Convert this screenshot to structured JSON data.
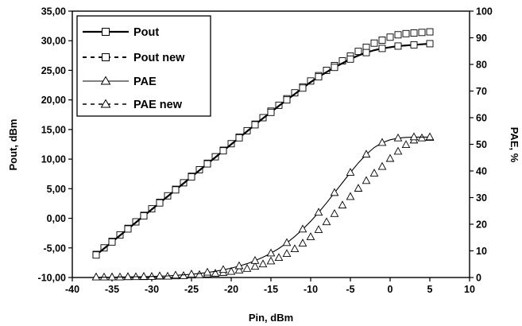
{
  "chart_data": {
    "type": "line",
    "xlabel": "Pin, dBm",
    "ylabel_left": "Pout, dBm",
    "ylabel_right": "PAE, %",
    "x_ticks": [
      "-40",
      "-35",
      "-30",
      "-25",
      "-20",
      "-15",
      "-10",
      "-5",
      "0",
      "5",
      "10"
    ],
    "y_left_ticks": [
      "-10,00",
      "-5,00",
      "0,00",
      "5,00",
      "10,00",
      "15,00",
      "20,00",
      "25,00",
      "30,00",
      "35,00"
    ],
    "y_right_ticks": [
      "0",
      "10",
      "20",
      "30",
      "40",
      "50",
      "60",
      "70",
      "80",
      "90",
      "100"
    ],
    "xlim": [
      -40,
      10
    ],
    "ylim_left": [
      -10,
      35
    ],
    "ylim_right": [
      0,
      100
    ],
    "grid": false,
    "legend_position": "top-left",
    "series": [
      {
        "name": "Pout",
        "axis": "left",
        "line": "solid",
        "marker": "square",
        "marker_step": 2,
        "x": [
          -37,
          -36,
          -35,
          -34,
          -33,
          -32,
          -31,
          -30,
          -29,
          -28,
          -27,
          -26,
          -25,
          -24,
          -23,
          -22,
          -21,
          -20,
          -19,
          -18,
          -17,
          -16,
          -15,
          -14,
          -13,
          -12,
          -11,
          -10,
          -9,
          -8,
          -7,
          -6,
          -5,
          -4,
          -3,
          -2,
          -1,
          0,
          1,
          2,
          3,
          4,
          5
        ],
        "y": [
          -6.2,
          -5.1,
          -4.0,
          -2.9,
          -1.8,
          -0.7,
          0.4,
          1.5,
          2.6,
          3.7,
          4.8,
          5.9,
          7.0,
          8.1,
          9.2,
          10.3,
          11.4,
          12.5,
          13.6,
          14.7,
          15.8,
          16.9,
          17.9,
          19.0,
          20.0,
          21.0,
          22.0,
          23.0,
          23.9,
          24.7,
          25.5,
          26.2,
          26.9,
          27.5,
          28.0,
          28.4,
          28.7,
          28.9,
          29.1,
          29.2,
          29.3,
          29.4,
          29.5
        ]
      },
      {
        "name": "Pout new",
        "axis": "left",
        "line": "none",
        "marker": "square",
        "x": [
          -37,
          -36,
          -35,
          -34,
          -33,
          -32,
          -31,
          -30,
          -29,
          -28,
          -27,
          -26,
          -25,
          -24,
          -23,
          -22,
          -21,
          -20,
          -19,
          -18,
          -17,
          -16,
          -15,
          -14,
          -13,
          -12,
          -11,
          -10,
          -9,
          -8,
          -7,
          -6,
          -5,
          -4,
          -3,
          -2,
          -1,
          0,
          1,
          2,
          3,
          4,
          5
        ],
        "y": [
          -6.1,
          -5.0,
          -3.9,
          -2.8,
          -1.7,
          -0.6,
          0.5,
          1.6,
          2.7,
          3.8,
          4.9,
          6.0,
          7.1,
          8.2,
          9.3,
          10.4,
          11.5,
          12.6,
          13.7,
          14.8,
          15.9,
          17.0,
          18.1,
          19.1,
          20.2,
          21.2,
          22.2,
          23.2,
          24.1,
          25.0,
          25.8,
          26.6,
          27.4,
          28.2,
          28.9,
          29.6,
          30.1,
          30.6,
          31.0,
          31.2,
          31.3,
          31.4,
          31.5
        ]
      },
      {
        "name": "PAE",
        "axis": "right",
        "line": "solid",
        "marker": "triangle",
        "marker_step": 2,
        "x": [
          -37,
          -36,
          -35,
          -34,
          -33,
          -32,
          -31,
          -30,
          -29,
          -28,
          -27,
          -26,
          -25,
          -24,
          -23,
          -22,
          -21,
          -20,
          -19,
          -18,
          -17,
          -16,
          -15,
          -14,
          -13,
          -12,
          -11,
          -10,
          -9,
          -8,
          -7,
          -6,
          -5,
          -4,
          -3,
          -2,
          -1,
          0,
          1,
          2,
          3,
          4,
          5
        ],
        "y": [
          0.1,
          0.1,
          0.1,
          0.2,
          0.2,
          0.3,
          0.3,
          0.4,
          0.5,
          0.6,
          0.8,
          1.0,
          1.2,
          1.5,
          1.9,
          2.3,
          2.9,
          3.5,
          4.3,
          5.2,
          6.3,
          7.6,
          9.1,
          10.9,
          13.0,
          15.4,
          18.1,
          21.1,
          24.4,
          28.0,
          31.8,
          35.6,
          39.4,
          43.0,
          46.2,
          48.8,
          50.6,
          51.7,
          52.3,
          52.6,
          52.7,
          52.7,
          52.7
        ]
      },
      {
        "name": "PAE new",
        "axis": "right",
        "line": "none",
        "marker": "triangle",
        "x": [
          -37,
          -36,
          -35,
          -34,
          -33,
          -32,
          -31,
          -30,
          -29,
          -28,
          -27,
          -26,
          -25,
          -24,
          -23,
          -22,
          -21,
          -20,
          -19,
          -18,
          -17,
          -16,
          -15,
          -14,
          -13,
          -12,
          -11,
          -10,
          -9,
          -8,
          -7,
          -6,
          -5,
          -4,
          -3,
          -2,
          -1,
          0,
          1,
          2,
          3,
          4,
          5
        ],
        "y": [
          0.1,
          0.1,
          0.1,
          0.1,
          0.2,
          0.2,
          0.2,
          0.3,
          0.4,
          0.4,
          0.5,
          0.6,
          0.8,
          1.0,
          1.2,
          1.5,
          1.8,
          2.2,
          2.7,
          3.3,
          4.1,
          5.0,
          6.1,
          7.4,
          8.9,
          10.7,
          12.8,
          15.2,
          17.9,
          20.8,
          23.9,
          27.1,
          30.3,
          33.4,
          36.3,
          39.1,
          41.6,
          44.6,
          47.3,
          49.8,
          51.5,
          52.3,
          52.5
        ]
      }
    ]
  }
}
